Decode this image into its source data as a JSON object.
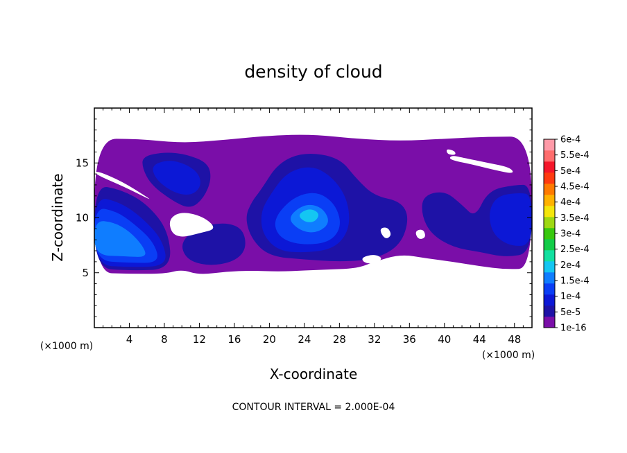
{
  "chart_data": {
    "type": "heatmap",
    "title": "density of cloud",
    "xlabel": "X-coordinate",
    "ylabel": "Z-coordinate",
    "x_unit": "(×1000 m)",
    "y_unit": "(×1000 m)",
    "xlim": [
      0,
      50
    ],
    "ylim": [
      0,
      20
    ],
    "x_ticks": [
      4,
      8,
      12,
      16,
      20,
      24,
      28,
      32,
      36,
      40,
      44,
      48
    ],
    "y_ticks": [
      5,
      10,
      15
    ],
    "contour_note": "CONTOUR INTERVAL = 2.000E-04",
    "colorbar": {
      "levels": [
        "1e-16",
        "5e-5",
        "1e-4",
        "1.5e-4",
        "2e-4",
        "2.5e-4",
        "3e-4",
        "3.5e-4",
        "4e-4",
        "4.5e-4",
        "5e-4",
        "5.5e-4",
        "6e-4"
      ],
      "colors": [
        "#7a0ea8",
        "#1e12a6",
        "#0c18d6",
        "#0a3ef5",
        "#0f7dff",
        "#14c6f2",
        "#12e0a0",
        "#12cc48",
        "#37c80e",
        "#9ed812",
        "#f4e60c",
        "#ffb200",
        "#ff7a00",
        "#ff3a10",
        "#f5162a",
        "#ff6d6d",
        "#ff9aa8"
      ]
    },
    "regions": [
      {
        "level": 0,
        "points": [
          [
            0,
            17.2
          ],
          [
            5,
            17.2
          ],
          [
            10,
            16.8
          ],
          [
            15,
            17.1
          ],
          [
            20,
            17.5
          ],
          [
            25,
            17.6
          ],
          [
            30,
            17.2
          ],
          [
            35,
            17.0
          ],
          [
            40,
            17.2
          ],
          [
            45,
            17.4
          ],
          [
            50,
            17.4
          ],
          [
            50,
            5.4
          ],
          [
            47,
            5.3
          ],
          [
            44,
            5.6
          ],
          [
            41,
            6.0
          ],
          [
            38,
            6.3
          ],
          [
            35,
            6.7
          ],
          [
            32,
            6.0
          ],
          [
            30,
            5.4
          ],
          [
            27,
            5.3
          ],
          [
            24,
            5.2
          ],
          [
            21,
            5.1
          ],
          [
            18,
            5.2
          ],
          [
            15,
            5.1
          ],
          [
            12,
            4.8
          ],
          [
            10,
            5.3
          ],
          [
            8,
            4.9
          ],
          [
            4,
            4.9
          ],
          [
            0,
            5.0
          ]
        ]
      },
      {
        "level": 1,
        "points": [
          [
            0,
            13.0
          ],
          [
            3,
            12.6
          ],
          [
            6,
            11.3
          ],
          [
            8.5,
            8.8
          ],
          [
            8.8,
            5.3
          ],
          [
            4,
            5.2
          ],
          [
            0,
            5.4
          ]
        ]
      },
      {
        "level": 1,
        "points": [
          [
            5.5,
            15.6
          ],
          [
            8,
            16.0
          ],
          [
            10.5,
            15.8
          ],
          [
            13,
            15.0
          ],
          [
            13.4,
            13.5
          ],
          [
            12.5,
            11.8
          ],
          [
            11,
            10.8
          ],
          [
            9,
            11.5
          ],
          [
            6.5,
            13.0
          ],
          [
            5.5,
            14.5
          ]
        ]
      },
      {
        "level": 1,
        "points": [
          [
            19,
            12.5
          ],
          [
            21,
            15.0
          ],
          [
            24,
            16.0
          ],
          [
            28,
            15.5
          ],
          [
            30,
            13.5
          ],
          [
            32,
            12.0
          ],
          [
            35,
            11.5
          ],
          [
            36,
            10.0
          ],
          [
            35,
            7.5
          ],
          [
            32,
            6.2
          ],
          [
            28,
            6.0
          ],
          [
            24,
            6.2
          ],
          [
            20,
            6.5
          ],
          [
            18,
            8.0
          ],
          [
            17.2,
            10.0
          ],
          [
            18,
            11.5
          ]
        ]
      },
      {
        "level": 1,
        "points": [
          [
            9.8,
            7.8
          ],
          [
            12,
            9.2
          ],
          [
            15,
            9.6
          ],
          [
            17,
            9.0
          ],
          [
            17.4,
            7.2
          ],
          [
            16,
            6.0
          ],
          [
            13,
            5.6
          ],
          [
            10.5,
            6.2
          ]
        ]
      },
      {
        "level": 1,
        "points": [
          [
            37.5,
            12.0
          ],
          [
            40,
            12.5
          ],
          [
            42,
            11.2
          ],
          [
            43.5,
            10.0
          ],
          [
            45,
            12.5
          ],
          [
            48,
            13.0
          ],
          [
            50,
            13.0
          ],
          [
            50,
            6.8
          ],
          [
            47,
            6.4
          ],
          [
            44,
            6.9
          ],
          [
            41,
            7.3
          ],
          [
            38.5,
            8.5
          ],
          [
            37.4,
            10.2
          ]
        ]
      },
      {
        "level": 2,
        "points": [
          [
            0,
            12.0
          ],
          [
            3,
            11.4
          ],
          [
            5.5,
            10.0
          ],
          [
            7.8,
            8.0
          ],
          [
            8.4,
            5.6
          ],
          [
            4,
            5.5
          ],
          [
            0,
            5.7
          ]
        ]
      },
      {
        "level": 2,
        "points": [
          [
            6.5,
            14.8
          ],
          [
            8.5,
            15.3
          ],
          [
            10.5,
            14.9
          ],
          [
            12,
            14.0
          ],
          [
            12.2,
            12.8
          ],
          [
            11,
            12.0
          ],
          [
            9,
            12.3
          ],
          [
            7,
            13.5
          ]
        ]
      },
      {
        "level": 2,
        "points": [
          [
            20,
            12.0
          ],
          [
            22,
            14.2
          ],
          [
            25,
            14.8
          ],
          [
            27.5,
            13.5
          ],
          [
            29,
            11.5
          ],
          [
            29.2,
            9.0
          ],
          [
            27.5,
            7.2
          ],
          [
            24,
            6.8
          ],
          [
            21,
            7.0
          ],
          [
            19.2,
            8.5
          ],
          [
            19,
            10.5
          ]
        ]
      },
      {
        "level": 2,
        "points": [
          [
            46,
            12.0
          ],
          [
            48.5,
            12.3
          ],
          [
            50,
            12.1
          ],
          [
            50,
            7.5
          ],
          [
            47.5,
            7.4
          ],
          [
            45.5,
            8.5
          ],
          [
            45,
            10.5
          ]
        ]
      },
      {
        "level": 3,
        "points": [
          [
            0,
            11.0
          ],
          [
            2.5,
            10.6
          ],
          [
            4.5,
            9.5
          ],
          [
            6.8,
            7.8
          ],
          [
            7.5,
            5.9
          ],
          [
            4,
            5.9
          ],
          [
            0,
            6.1
          ]
        ]
      },
      {
        "level": 3,
        "points": [
          [
            21,
            10.5
          ],
          [
            23,
            12.0
          ],
          [
            25.5,
            12.4
          ],
          [
            27.5,
            11.3
          ],
          [
            28.3,
            9.3
          ],
          [
            27,
            7.8
          ],
          [
            24,
            7.5
          ],
          [
            21.5,
            8.0
          ],
          [
            20.5,
            9.2
          ]
        ]
      },
      {
        "level": 4,
        "points": [
          [
            0,
            9.8
          ],
          [
            2.2,
            9.6
          ],
          [
            4,
            8.8
          ],
          [
            5.6,
            7.4
          ],
          [
            6.0,
            6.4
          ],
          [
            3.5,
            6.5
          ],
          [
            0,
            6.6
          ]
        ]
      },
      {
        "level": 4,
        "points": [
          [
            22,
            10.0
          ],
          [
            24,
            11.3
          ],
          [
            26,
            11.0
          ],
          [
            27,
            9.6
          ],
          [
            25.5,
            8.6
          ],
          [
            23.5,
            8.8
          ]
        ]
      },
      {
        "level": 5,
        "points": [
          [
            23.2,
            10.3
          ],
          [
            24.6,
            10.9
          ],
          [
            25.8,
            10.4
          ],
          [
            25.2,
            9.6
          ],
          [
            24,
            9.6
          ]
        ]
      }
    ],
    "holes": [
      {
        "points": [
          [
            0,
            14.0
          ],
          [
            3.5,
            12.8
          ],
          [
            6.5,
            11.6
          ],
          [
            6.0,
            11.9
          ],
          [
            3.2,
            13.3
          ],
          [
            0.3,
            14.3
          ]
        ]
      },
      {
        "points": [
          [
            8.5,
            9.9
          ],
          [
            10,
            10.6
          ],
          [
            12.5,
            10.1
          ],
          [
            14,
            9.0
          ],
          [
            12,
            8.6
          ],
          [
            10,
            8.2
          ],
          [
            8.8,
            8.6
          ]
        ]
      },
      {
        "points": [
          [
            32.5,
            9.0
          ],
          [
            33.5,
            9.2
          ],
          [
            34,
            8.4
          ],
          [
            33.2,
            8.0
          ]
        ]
      },
      {
        "points": [
          [
            30.5,
            6.4
          ],
          [
            32,
            6.7
          ],
          [
            33,
            6.3
          ],
          [
            32,
            5.8
          ],
          [
            30.8,
            5.9
          ]
        ]
      },
      {
        "points": [
          [
            36.6,
            8.8
          ],
          [
            37.6,
            9.0
          ],
          [
            37.9,
            8.2
          ],
          [
            37.0,
            8.0
          ]
        ]
      },
      {
        "points": [
          [
            40.5,
            15.3
          ],
          [
            43,
            14.9
          ],
          [
            46,
            14.3
          ],
          [
            48,
            14.0
          ],
          [
            47.5,
            14.6
          ],
          [
            45,
            15.0
          ],
          [
            42,
            15.5
          ],
          [
            40.8,
            15.7
          ]
        ]
      },
      {
        "points": [
          [
            40.2,
            16.3
          ],
          [
            41.2,
            16.1
          ],
          [
            41.3,
            15.7
          ],
          [
            40.3,
            15.8
          ]
        ]
      }
    ]
  }
}
